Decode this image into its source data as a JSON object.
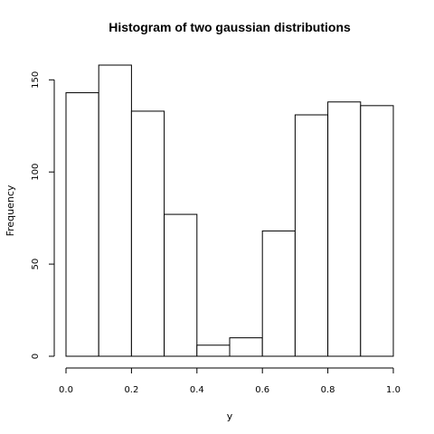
{
  "chart_data": {
    "type": "bar",
    "title": "Histogram of two gaussian distributions",
    "xlabel": "y",
    "ylabel": "Frequency",
    "bins": [
      {
        "from": 0.0,
        "to": 0.1,
        "count": 143
      },
      {
        "from": 0.1,
        "to": 0.2,
        "count": 158
      },
      {
        "from": 0.2,
        "to": 0.3,
        "count": 133
      },
      {
        "from": 0.3,
        "to": 0.4,
        "count": 77
      },
      {
        "from": 0.4,
        "to": 0.5,
        "count": 6
      },
      {
        "from": 0.5,
        "to": 0.6,
        "count": 10
      },
      {
        "from": 0.6,
        "to": 0.7,
        "count": 68
      },
      {
        "from": 0.7,
        "to": 0.8,
        "count": 131
      },
      {
        "from": 0.8,
        "to": 0.9,
        "count": 138
      },
      {
        "from": 0.9,
        "to": 1.0,
        "count": 136
      }
    ],
    "xlim": [
      0.0,
      1.0
    ],
    "ylim": [
      0,
      158
    ],
    "x_ticks": [
      0.0,
      0.2,
      0.4,
      0.6,
      0.8,
      1.0
    ],
    "x_tick_labels": [
      "0.0",
      "0.2",
      "0.4",
      "0.6",
      "0.8",
      "1.0"
    ],
    "y_ticks": [
      0,
      50,
      100,
      150
    ],
    "y_tick_labels": [
      "0",
      "50",
      "100",
      "150"
    ],
    "grid": false,
    "legend": "none",
    "bar_fill": "#ffffff",
    "bar_stroke": "#000000"
  }
}
